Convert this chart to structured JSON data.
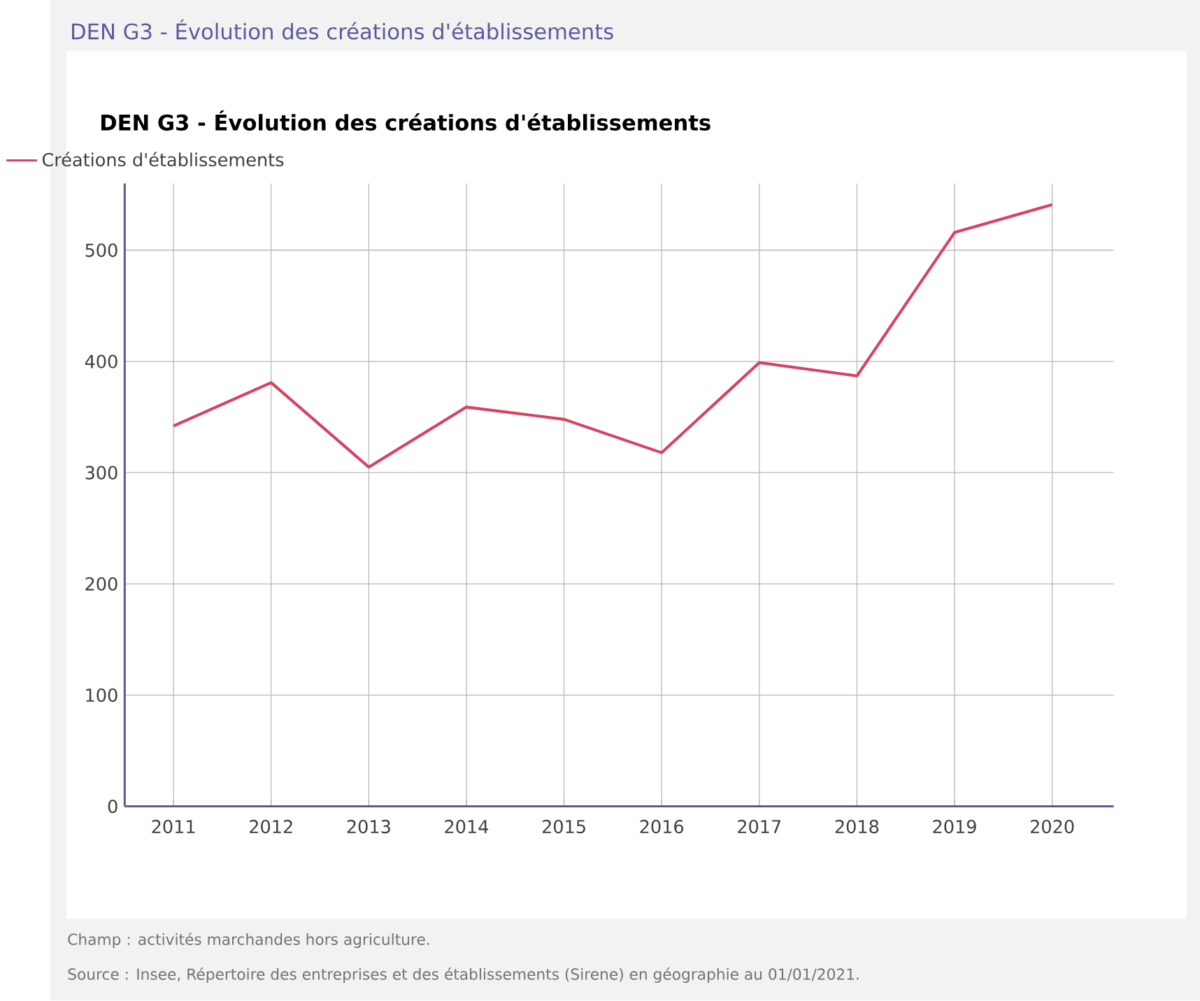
{
  "chart_data": {
    "type": "line",
    "title": "DEN G3 - Évolution des créations d'établissements",
    "categories": [
      "2011",
      "2012",
      "2013",
      "2014",
      "2015",
      "2016",
      "2017",
      "2018",
      "2019",
      "2020"
    ],
    "series": [
      {
        "name": "Créations d'établissements",
        "color": "#d9415f",
        "values": [
          342,
          381,
          305,
          359,
          348,
          318,
          399,
          387,
          516,
          541
        ]
      }
    ],
    "ylim": [
      0,
      560
    ],
    "yticks": [
      0,
      100,
      200,
      300,
      400,
      500
    ],
    "grid": true,
    "legend": "top left",
    "marker": "none",
    "line_style": "solid",
    "annotations": [
      "DEN G3 - Évolution des créations d'établissements",
      "Champ : activités marchandes hors agriculture.",
      "Source : Insee, Répertoire des entreprises et des établissements (Sirene) en géographie au 01/01/2021."
    ]
  }
}
